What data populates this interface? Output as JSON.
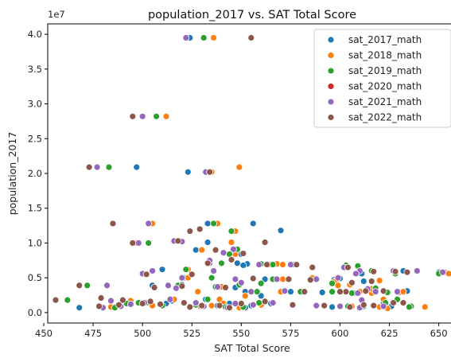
{
  "chart_data": {
    "type": "scatter",
    "title": "population_2017 vs. SAT Total Score",
    "xlabel": "SAT Total Score",
    "ylabel": "population_2017",
    "y_offset_label": "1e7",
    "xlim": [
      452,
      659
    ],
    "ylim": [
      -1.5,
      41.5
    ],
    "x_ticks": [
      450,
      475,
      500,
      525,
      550,
      575,
      600,
      625,
      650
    ],
    "x_tick_labels": [
      "450",
      "475",
      "500",
      "525",
      "550",
      "575",
      "600",
      "625",
      "650"
    ],
    "y_ticks": [
      0,
      5,
      10,
      15,
      20,
      25,
      30,
      35,
      40
    ],
    "y_tick_labels": [
      "0.0",
      "0.5",
      "1.0",
      "1.5",
      "2.0",
      "2.5",
      "3.0",
      "3.5",
      "4.0"
    ],
    "y_units_note": "population values in units of 1e6 (axis scaled by 1e7)",
    "legend_position": "top-right",
    "series": [
      {
        "name": "sat_2017_math",
        "color": "#1f77b4",
        "points": [
          [
            524,
            39.5
          ],
          [
            497,
            20.9
          ],
          [
            523,
            20.2
          ],
          [
            533,
            12.8
          ],
          [
            556,
            12.8
          ],
          [
            570,
            11.8
          ],
          [
            545,
            11.7
          ],
          [
            533,
            10.1
          ],
          [
            527,
            9.0
          ],
          [
            550,
            8.4
          ],
          [
            548,
            7.1
          ],
          [
            553,
            7.0
          ],
          [
            551,
            6.8
          ],
          [
            563,
            7.0
          ],
          [
            576,
            6.9
          ],
          [
            510,
            6.2
          ],
          [
            521,
            5.0
          ],
          [
            562,
            4.8
          ],
          [
            600,
            4.9
          ],
          [
            611,
            5.6
          ],
          [
            632,
            6.0
          ],
          [
            650,
            5.8
          ],
          [
            597,
            4.7
          ],
          [
            612,
            4.5
          ],
          [
            520,
            4.0
          ],
          [
            547,
            3.6
          ],
          [
            552,
            3.0
          ],
          [
            560,
            2.4
          ],
          [
            575,
            3.0
          ],
          [
            591,
            2.9
          ],
          [
            613,
            3.1
          ],
          [
            630,
            3.0
          ],
          [
            607,
            2.8
          ],
          [
            634,
            3.1
          ],
          [
            468,
            0.7
          ],
          [
            490,
            1.2
          ],
          [
            500,
            1.4
          ],
          [
            515,
            1.7
          ],
          [
            532,
            1.9
          ],
          [
            538,
            1.0
          ],
          [
            555,
            1.0
          ],
          [
            565,
            1.3
          ],
          [
            544,
            1.3
          ],
          [
            530,
            0.9
          ],
          [
            552,
            0.7
          ],
          [
            612,
            0.9
          ],
          [
            596,
            0.8
          ],
          [
            622,
            1.4
          ],
          [
            626,
            0.9
          ],
          [
            505,
            3.9
          ],
          [
            512,
            1.3
          ],
          [
            486,
            0.8
          ]
        ]
      },
      {
        "name": "sat_2018_math",
        "color": "#ff7f0e",
        "points": [
          [
            536,
            39.5
          ],
          [
            512,
            28.2
          ],
          [
            549,
            20.9
          ],
          [
            535,
            20.2
          ],
          [
            505,
            12.8
          ],
          [
            538,
            12.8
          ],
          [
            547,
            11.7
          ],
          [
            497,
            10.0
          ],
          [
            545,
            10.1
          ],
          [
            530,
            9.0
          ],
          [
            547,
            8.4
          ],
          [
            534,
            7.1
          ],
          [
            568,
            7.0
          ],
          [
            571,
            6.9
          ],
          [
            564,
            6.9
          ],
          [
            523,
            6.2
          ],
          [
            523,
            5.0
          ],
          [
            571,
            4.8
          ],
          [
            586,
            5.0
          ],
          [
            598,
            4.6
          ],
          [
            608,
            5.6
          ],
          [
            653,
            5.8
          ],
          [
            655,
            5.6
          ],
          [
            597,
            4.4
          ],
          [
            620,
            4.6
          ],
          [
            540,
            3.7
          ],
          [
            528,
            3.0
          ],
          [
            552,
            2.4
          ],
          [
            570,
            3.0
          ],
          [
            610,
            3.0
          ],
          [
            630,
            2.9
          ],
          [
            616,
            2.8
          ],
          [
            622,
            1.9
          ],
          [
            632,
            3.0
          ],
          [
            484,
            0.8
          ],
          [
            494,
            1.7
          ],
          [
            504,
            1.3
          ],
          [
            516,
            1.9
          ],
          [
            539,
            1.9
          ],
          [
            535,
            1.0
          ],
          [
            560,
            1.1
          ],
          [
            541,
            1.3
          ],
          [
            529,
            0.9
          ],
          [
            549,
            0.7
          ],
          [
            606,
            0.9
          ],
          [
            620,
            0.8
          ],
          [
            643,
            0.8
          ],
          [
            605,
            4.0
          ],
          [
            599,
            3.9
          ],
          [
            616,
            3.4
          ],
          [
            505,
            1.0
          ],
          [
            624,
            0.6
          ]
        ]
      },
      {
        "name": "sat_2019_math",
        "color": "#2ca02c",
        "points": [
          [
            531,
            39.5
          ],
          [
            507,
            28.2
          ],
          [
            483,
            20.9
          ],
          [
            536,
            12.8
          ],
          [
            545,
            11.7
          ],
          [
            503,
            10.0
          ],
          [
            548,
            9.1
          ],
          [
            544,
            8.4
          ],
          [
            540,
            7.1
          ],
          [
            560,
            7.0
          ],
          [
            566,
            6.9
          ],
          [
            603,
            6.8
          ],
          [
            609,
            6.7
          ],
          [
            616,
            6.0
          ],
          [
            522,
            6.2
          ],
          [
            535,
            5.0
          ],
          [
            566,
            4.8
          ],
          [
            560,
            4.2
          ],
          [
            596,
            4.2
          ],
          [
            628,
            5.6
          ],
          [
            650,
            5.6
          ],
          [
            596,
            3.0
          ],
          [
            618,
            3.5
          ],
          [
            462,
            1.8
          ],
          [
            472,
            3.9
          ],
          [
            518,
            3.9
          ],
          [
            537,
            3.7
          ],
          [
            558,
            3.0
          ],
          [
            624,
            2.9
          ],
          [
            629,
            1.9
          ],
          [
            606,
            2.8
          ],
          [
            636,
            0.9
          ],
          [
            498,
            1.4
          ],
          [
            533,
            1.9
          ],
          [
            542,
            0.8
          ],
          [
            559,
            1.4
          ],
          [
            527,
            1.1
          ],
          [
            551,
            0.8
          ],
          [
            604,
            0.9
          ],
          [
            623,
            1.4
          ],
          [
            502,
            1.4
          ],
          [
            486,
            0.7
          ],
          [
            492,
            1.3
          ],
          [
            549,
            4.0
          ],
          [
            580,
            3.0
          ],
          [
            510,
            1.0
          ],
          [
            635,
            0.8
          ]
        ]
      },
      {
        "name": "sat_2020_math",
        "color": "#d62728",
        "points": []
      },
      {
        "name": "sat_2021_math",
        "color": "#9467bd",
        "points": [
          [
            522,
            39.5
          ],
          [
            500,
            28.2
          ],
          [
            477,
            20.9
          ],
          [
            532,
            20.2
          ],
          [
            503,
            12.8
          ],
          [
            516,
            10.3
          ],
          [
            520,
            10.2
          ],
          [
            498,
            10.0
          ],
          [
            546,
            9.1
          ],
          [
            541,
            8.6
          ],
          [
            534,
            7.1
          ],
          [
            534,
            7.5
          ],
          [
            559,
            6.9
          ],
          [
            575,
            6.9
          ],
          [
            602,
            6.5
          ],
          [
            610,
            6.0
          ],
          [
            627,
            6.0
          ],
          [
            505,
            6.0
          ],
          [
            500,
            5.6
          ],
          [
            520,
            5.0
          ],
          [
            547,
            4.8
          ],
          [
            550,
            4.3
          ],
          [
            568,
            4.8
          ],
          [
            588,
            4.8
          ],
          [
            599,
            5.0
          ],
          [
            608,
            5.6
          ],
          [
            639,
            6.0
          ],
          [
            652,
            5.8
          ],
          [
            513,
            3.9
          ],
          [
            482,
            3.9
          ],
          [
            538,
            3.7
          ],
          [
            555,
            3.0
          ],
          [
            572,
            3.1
          ],
          [
            614,
            3.4
          ],
          [
            618,
            3.0
          ],
          [
            609,
            2.8
          ],
          [
            629,
            3.0
          ],
          [
            484,
            1.7
          ],
          [
            494,
            1.2
          ],
          [
            501,
            1.4
          ],
          [
            514,
            1.9
          ],
          [
            527,
            1.4
          ],
          [
            547,
            1.3
          ],
          [
            556,
            1.1
          ],
          [
            566,
            1.4
          ],
          [
            543,
            0.7
          ],
          [
            531,
            0.9
          ],
          [
            588,
            1.0
          ],
          [
            600,
            0.9
          ],
          [
            610,
            0.7
          ],
          [
            622,
            0.9
          ],
          [
            611,
            1.8
          ],
          [
            489,
            0.9
          ],
          [
            480,
            0.7
          ],
          [
            536,
            6.0
          ],
          [
            517,
            3.5
          ]
        ]
      },
      {
        "name": "sat_2022_math",
        "color": "#8c564b",
        "points": [
          [
            555,
            39.5
          ],
          [
            495,
            28.2
          ],
          [
            473,
            20.9
          ],
          [
            534,
            20.2
          ],
          [
            485,
            12.8
          ],
          [
            529,
            12.0
          ],
          [
            524,
            11.7
          ],
          [
            518,
            10.3
          ],
          [
            495,
            10.0
          ],
          [
            562,
            10.1
          ],
          [
            537,
            9.0
          ],
          [
            551,
            8.5
          ],
          [
            533,
            7.1
          ],
          [
            545,
            7.6
          ],
          [
            563,
            6.9
          ],
          [
            578,
            6.9
          ],
          [
            586,
            6.5
          ],
          [
            604,
            6.5
          ],
          [
            617,
            5.9
          ],
          [
            628,
            5.9
          ],
          [
            502,
            5.5
          ],
          [
            525,
            5.5
          ],
          [
            556,
            4.9
          ],
          [
            574,
            4.8
          ],
          [
            585,
            4.7
          ],
          [
            606,
            4.3
          ],
          [
            616,
            4.5
          ],
          [
            634,
            5.8
          ],
          [
            506,
            3.6
          ],
          [
            468,
            3.9
          ],
          [
            520,
            3.8
          ],
          [
            542,
            3.6
          ],
          [
            582,
            3.0
          ],
          [
            603,
            3.0
          ],
          [
            613,
            3.1
          ],
          [
            622,
            3.1
          ],
          [
            600,
            3.0
          ],
          [
            456,
            1.8
          ],
          [
            479,
            2.1
          ],
          [
            490,
            1.8
          ],
          [
            504,
            1.6
          ],
          [
            521,
            1.4
          ],
          [
            539,
            1.0
          ],
          [
            550,
            1.3
          ],
          [
            562,
            1.6
          ],
          [
            576,
            1.1
          ],
          [
            592,
            1.0
          ],
          [
            612,
            1.1
          ],
          [
            627,
            1.4
          ],
          [
            632,
            1.4
          ],
          [
            544,
            0.7
          ],
          [
            524,
            0.8
          ],
          [
            509,
            1.2
          ],
          [
            478,
            0.9
          ],
          [
            488,
            1.1
          ],
          [
            500,
            1.3
          ],
          [
            605,
            0.8
          ],
          [
            617,
            1.0
          ],
          [
            530,
            1.0
          ]
        ]
      }
    ]
  }
}
